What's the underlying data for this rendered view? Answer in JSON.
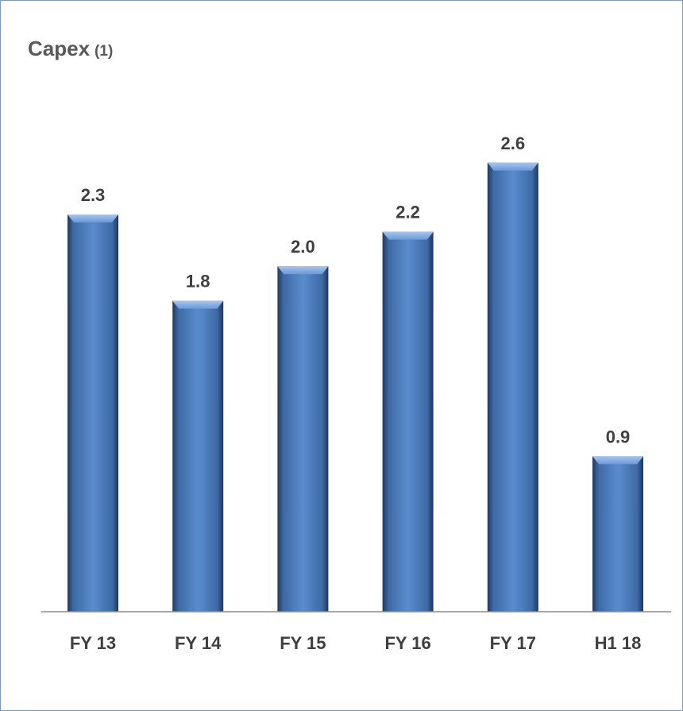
{
  "chart_data": {
    "type": "bar",
    "title": "Capex",
    "title_note": "(1)",
    "categories": [
      "FY 13",
      "FY 14",
      "FY 15",
      "FY 16",
      "FY 17",
      "H1 18"
    ],
    "values": [
      2.3,
      1.8,
      2.0,
      2.2,
      2.6,
      0.9
    ],
    "value_labels": [
      "2.3",
      "1.8",
      "2.0",
      "2.2",
      "2.6",
      "0.9"
    ],
    "ylim": [
      0,
      3.0
    ],
    "grid": false,
    "legend": "none",
    "xlabel": "",
    "ylabel": "",
    "colors": {
      "bar": "#4f81bd",
      "bar_light": "#8fb3e2",
      "bar_dark": "#243f60",
      "axis": "#8c8c8c",
      "label": "#3f3f3f"
    }
  }
}
